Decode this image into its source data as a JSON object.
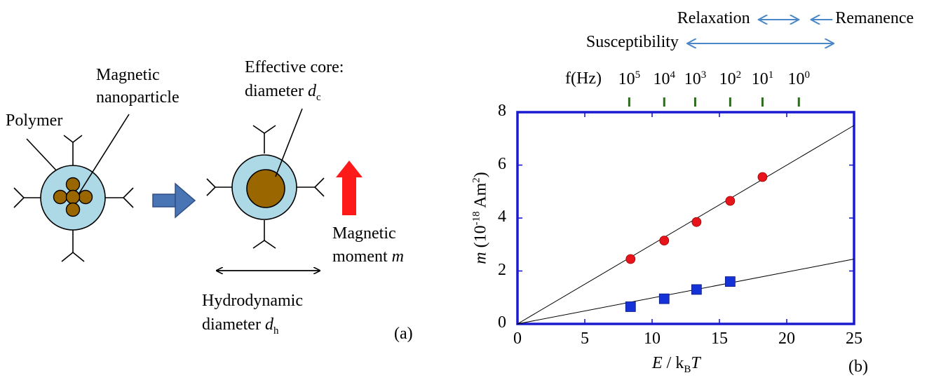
{
  "diagram": {
    "polymer_label": "Polymer",
    "nanoparticle_label_line1": "Magnetic",
    "nanoparticle_label_line2": "nanoparticle",
    "core_label_line1": "Effective core:",
    "core_label_line2": "diameter ",
    "core_symbol": "d",
    "core_subscript": "c",
    "moment_label_line1": "Magnetic",
    "moment_label_line2": "moment ",
    "moment_symbol": "m",
    "hydro_label_line1": "Hydrodynamic",
    "hydro_label_line2": "diameter ",
    "hydro_symbol": "d",
    "hydro_subscript": "h",
    "panel_label": "(a)",
    "colors": {
      "shell": "#add8e6",
      "core": "#996600",
      "process_arrow": "#4a75b5",
      "moment_arrow": "#ff1a1a"
    }
  },
  "chart_data": {
    "type": "scatter",
    "panel_label": "(b)",
    "xlabel_symbol": "E",
    "xlabel_rest": " / k",
    "xlabel_sub": "B",
    "xlabel_T": "T",
    "ylabel_symbol": "m",
    "ylabel_rest_1": " (10",
    "ylabel_sup": "-18",
    "ylabel_rest_2": " Am",
    "ylabel_sup2": "2",
    "ylabel_rest_3": ")",
    "xlim": [
      0,
      25
    ],
    "ylim": [
      0,
      8
    ],
    "x_ticks": [
      0,
      5,
      10,
      15,
      20,
      25
    ],
    "y_ticks": [
      0,
      2,
      4,
      6,
      8
    ],
    "series": [
      {
        "marker": "circle",
        "color": "#e8141b",
        "points": [
          [
            8.4,
            2.45
          ],
          [
            10.9,
            3.15
          ],
          [
            13.3,
            3.85
          ],
          [
            15.8,
            4.65
          ],
          [
            18.2,
            5.55
          ]
        ]
      },
      {
        "marker": "square",
        "color": "#1432d8",
        "points": [
          [
            8.4,
            0.65
          ],
          [
            10.9,
            0.95
          ],
          [
            13.3,
            1.3
          ],
          [
            15.8,
            1.6
          ]
        ]
      }
    ],
    "fit_lines": [
      {
        "from": [
          0,
          0
        ],
        "to": [
          25,
          7.5
        ]
      },
      {
        "from": [
          0,
          0
        ],
        "to": [
          25,
          2.45
        ]
      }
    ],
    "frequency_axis": {
      "label": "f(Hz)",
      "ticks": [
        {
          "x": 8.3,
          "base": "10",
          "exp": "5"
        },
        {
          "x": 10.9,
          "base": "10",
          "exp": "4"
        },
        {
          "x": 13.2,
          "base": "10",
          "exp": "3"
        },
        {
          "x": 15.8,
          "base": "10",
          "exp": "2"
        },
        {
          "x": 18.2,
          "base": "10",
          "exp": "1"
        },
        {
          "x": 20.9,
          "base": "10",
          "exp": "0"
        }
      ],
      "tick_color": "#2e6b1e"
    },
    "regimes": [
      {
        "label": "Relaxation",
        "from_x": 17.9,
        "to_x": 20.9
      },
      {
        "label": "Remanence",
        "from_x": 21.8,
        "to_x": 23.4
      },
      {
        "label": "Susceptibility",
        "from_x": 12.6,
        "to_x": 23.5
      }
    ],
    "frame_color": "#1a1ad0",
    "regime_arrow_color": "#4a86c8"
  }
}
